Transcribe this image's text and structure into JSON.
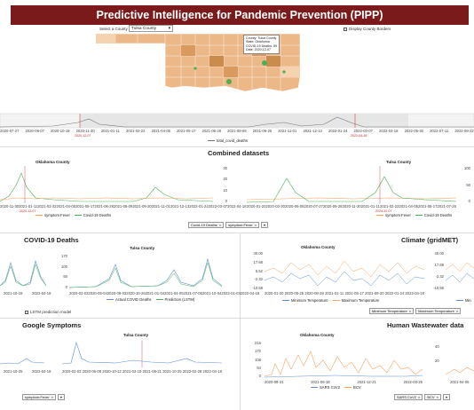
{
  "banner": {
    "title": "Predictive Intelligence for Pandemic Prevention (PIPP)"
  },
  "map": {
    "select_label": "Select a County",
    "selected_county": "Tulsa County",
    "border_toggle_label": "Display County Borders",
    "tooltip": {
      "county": "County: Tulsa County",
      "state": "State: Oklahoma",
      "deaths": "COVID-19 Deaths: 89",
      "date": "Date: 2020-12-07"
    }
  },
  "timeline": {
    "ticks": [
      "2020-07-27",
      "2020-09-07",
      "2020-10-19",
      "2020-11-30",
      "2021-01-11",
      "2021-02-22",
      "2021-04-05",
      "2021-05-17",
      "2021-06-28",
      "2021-08-09",
      "2021-09-20",
      "2021-11-01",
      "2021-12-13",
      "2022-01-24",
      "2022-03-07",
      "2022-04-18",
      "2022-05-30",
      "2022-07-11",
      "2022-08-22"
    ],
    "marker_a": "2020-12-07",
    "marker_b": "2022-04-18",
    "legend": "total_covid_deaths"
  },
  "combined": {
    "title": "Combined datasets",
    "left": {
      "title": "Oklahoma County",
      "y_ticks": [
        "30",
        "20",
        "10",
        "0"
      ],
      "x_ticks": [
        "2020-11-30",
        "2021-01-11",
        "2021-02-22",
        "2021-04-05",
        "2021-05-17",
        "2021-06-28",
        "2021-08-09",
        "2021-09-20",
        "2021-11-01",
        "2021-12-13",
        "2022-01-24",
        "2022-03-07",
        "2022-04-18"
      ],
      "legend_a": "symptom:Fever",
      "legend_b": "Covid-19 Deaths",
      "marker": "2020-12-07"
    },
    "right": {
      "title": "Tulsa County",
      "y_ticks": [
        "100",
        "50",
        "0"
      ],
      "x_ticks": [
        "2020-01-20",
        "2020-03-30",
        "2020-06-08",
        "2020-07-27",
        "2020-09-28",
        "2020-11-30",
        "2021-01-11",
        "2021-02-22",
        "2021-04-05",
        "2021-05-17",
        "2021-07-26"
      ],
      "legend_a": "symptom:Fever",
      "legend_b": "Covid-19 Deaths",
      "marker": "2020-12-07"
    },
    "chips": [
      "Covid-19 Deaths",
      "symptom:Fever"
    ]
  },
  "covid": {
    "title": "COVID-19 Deaths",
    "small_x": [
      "2021-10-18",
      "2022-04-18"
    ],
    "chart": {
      "title": "Tulsa County",
      "y_ticks": [
        "170",
        "100",
        "50",
        "0"
      ],
      "x_ticks": [
        "2020-02-03",
        "2020-05-04",
        "2020-08-03",
        "2020-10-26",
        "2021-01-04",
        "2021-04-05",
        "2021-07-05",
        "2021-10-04",
        "2022-01-03",
        "2022-04-18"
      ],
      "legend_a": "Actual COVID Deaths",
      "legend_b": "Prediction (LSTM)"
    },
    "checkbox_label": "LSTM prediction model"
  },
  "climate": {
    "title": "Climate (gridMET)",
    "chart": {
      "title": "Oklahoma County",
      "y_ticks": [
        "40.00",
        "17.68",
        "5.52",
        "-2.32",
        "-10.58"
      ],
      "x_ticks": [
        "2020-01-20",
        "2020-05-25",
        "2020-09-28",
        "2021-01-11",
        "2021-05-17",
        "2021-09-20",
        "2022-01-24",
        "2022-04-18"
      ],
      "legend_a": "Minimum Temperature",
      "legend_b": "Maximum Temperature"
    },
    "right_y": [
      "40.00",
      "17.68",
      "-2.32",
      "-10.58"
    ],
    "right_legend": "Min",
    "chips": [
      "Minimum Temperature",
      "Maximum Temperature"
    ]
  },
  "google": {
    "title": "Google Symptoms",
    "small_x": [
      "2021-10-25",
      "2022-04-18"
    ],
    "chart": {
      "title": "Tulsa County",
      "x_ticks": [
        "2020-02-03",
        "2020-06-08",
        "2020-10-12",
        "2021-02-15",
        "2021-06-21",
        "2021-10-25",
        "2022-02-28",
        "2022-04-18"
      ]
    },
    "chip": "symptom:Fever"
  },
  "wastewater": {
    "title": "Human Wastewater data",
    "chart": {
      "title": "Oklahoma County",
      "y_ticks": [
        "216",
        "172",
        "108",
        "54",
        "0"
      ],
      "x_ticks": [
        "2020-08-31",
        "2021-06-18",
        "2021-12-21",
        "2022-03-26"
      ],
      "legend_a": "SARS CoV2",
      "legend_b": "BCV"
    },
    "right_y": [
      "40",
      "20"
    ],
    "right_x": "2021-04-05",
    "chips": [
      "SARS CoV2",
      "BCV"
    ]
  },
  "colors": {
    "banner": "#7a1a1a",
    "orange": "#f4a261",
    "green": "#4caf50",
    "blue": "#5c8fd6",
    "map_light": "#f2c79f",
    "map_dark": "#c98b4e",
    "marker": "#c62828"
  }
}
